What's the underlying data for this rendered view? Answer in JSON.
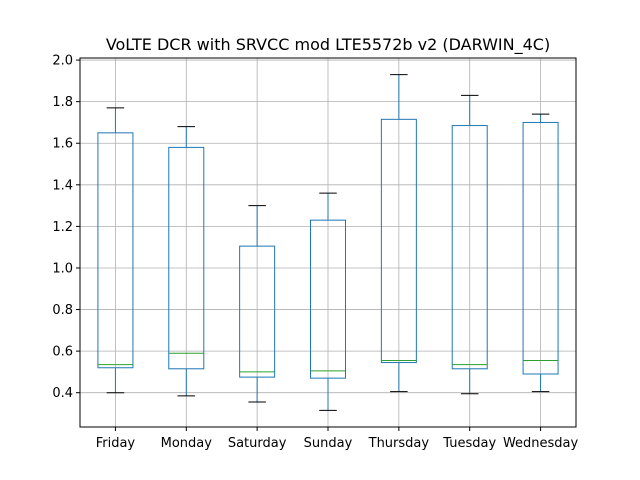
{
  "chart_data": {
    "type": "box",
    "title": "VoLTE DCR with SRVCC mod LTE5572b v2 (DARWIN_4C)",
    "xlabel": "",
    "ylabel": "",
    "ylim": [
      0.235,
      2.01
    ],
    "yticks": [
      0.4,
      0.6,
      0.8,
      1.0,
      1.2,
      1.4,
      1.6,
      1.8,
      2.0
    ],
    "ytick_labels": [
      "0.4",
      "0.6",
      "0.8",
      "1.0",
      "1.2",
      "1.4",
      "1.6",
      "1.8",
      "2.0"
    ],
    "grid": true,
    "categories": [
      "Friday",
      "Monday",
      "Saturday",
      "Sunday",
      "Thursday",
      "Tuesday",
      "Wednesday"
    ],
    "boxes": [
      {
        "label": "Friday",
        "whislo": 0.4,
        "q1": 0.52,
        "med": 0.535,
        "q3": 1.65,
        "whishi": 1.77
      },
      {
        "label": "Monday",
        "whislo": 0.385,
        "q1": 0.515,
        "med": 0.59,
        "q3": 1.58,
        "whishi": 1.68
      },
      {
        "label": "Saturday",
        "whislo": 0.355,
        "q1": 0.475,
        "med": 0.5,
        "q3": 1.105,
        "whishi": 1.3
      },
      {
        "label": "Sunday",
        "whislo": 0.315,
        "q1": 0.47,
        "med": 0.505,
        "q3": 1.23,
        "whishi": 1.36
      },
      {
        "label": "Thursday",
        "whislo": 0.405,
        "q1": 0.545,
        "med": 0.555,
        "q3": 1.715,
        "whishi": 1.93
      },
      {
        "label": "Tuesday",
        "whislo": 0.395,
        "q1": 0.515,
        "med": 0.535,
        "q3": 1.685,
        "whishi": 1.83
      },
      {
        "label": "Wednesday",
        "whislo": 0.405,
        "q1": 0.49,
        "med": 0.555,
        "q3": 1.7,
        "whishi": 1.74
      }
    ],
    "colors": {
      "box": "#1f77b4",
      "median": "#2ca02c",
      "caps": "#000000",
      "grid": "#b0b0b0",
      "axes": "#000000"
    }
  }
}
